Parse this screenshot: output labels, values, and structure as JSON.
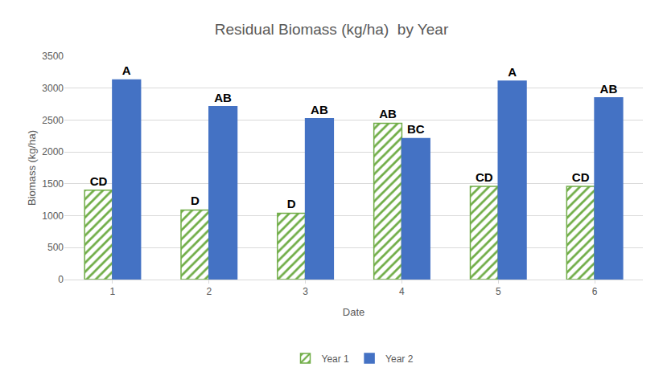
{
  "chart_data": {
    "type": "bar",
    "title": "Residual Biomass (kg/ha)  by Year",
    "x_label": "Date",
    "y_label": "Biomass (kg/ha)",
    "categories": [
      "1",
      "2",
      "3",
      "4",
      "5",
      "6"
    ],
    "series": [
      {
        "name": "Year 1",
        "color": "#70ad47",
        "marker": "hatch",
        "values": [
          1400,
          1090,
          1040,
          2450,
          1460,
          1460
        ],
        "labels": [
          "CD",
          "D",
          "D",
          "AB",
          "CD",
          "CD"
        ]
      },
      {
        "name": "Year 2",
        "color": "#4472c4",
        "marker": "solid",
        "values": [
          3130,
          2710,
          2520,
          2210,
          3110,
          2850
        ],
        "labels": [
          "A",
          "AB",
          "AB",
          "BC",
          "A",
          "AB"
        ]
      }
    ],
    "ylim": [
      0,
      3500
    ],
    "yticks": [
      0,
      500,
      1000,
      1500,
      2000,
      2500,
      3000,
      3500
    ],
    "grid": true,
    "legend": "bottom"
  }
}
